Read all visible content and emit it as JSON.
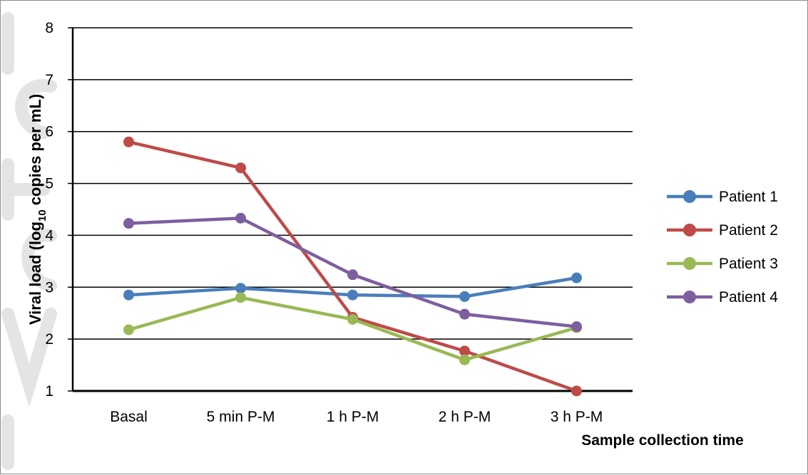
{
  "chart_data": {
    "type": "line",
    "categories": [
      "Basal",
      "5 min P-M",
      "1 h P-M",
      "2 h P-M",
      "3 h P-M"
    ],
    "series": [
      {
        "name": "Patient 1",
        "color": "#4A7EBB",
        "values": [
          2.85,
          2.98,
          2.85,
          2.82,
          3.18
        ]
      },
      {
        "name": "Patient 2",
        "color": "#BE4B48",
        "values": [
          5.8,
          5.3,
          2.42,
          1.77,
          1.0
        ]
      },
      {
        "name": "Patient 3",
        "color": "#98B954",
        "values": [
          2.18,
          2.8,
          2.38,
          1.6,
          2.22
        ]
      },
      {
        "name": "Patient 4",
        "color": "#7D5FA0",
        "values": [
          4.23,
          4.33,
          3.24,
          2.48,
          2.24
        ]
      }
    ],
    "ylim": [
      1,
      8
    ],
    "yticks": [
      "1",
      "2",
      "3",
      "4",
      "5",
      "6",
      "7",
      "8"
    ],
    "ylabel": {
      "prefix": "Viral load (log",
      "sub": "10",
      "suffix": " copies per mL)"
    },
    "xlabel": "Sample collection time",
    "grid": "horizontal",
    "legend_position": "right"
  }
}
